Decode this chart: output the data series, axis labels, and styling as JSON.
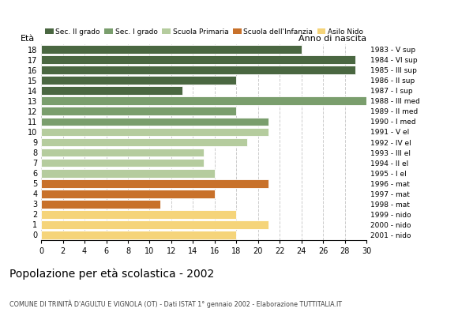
{
  "ages": [
    18,
    17,
    16,
    15,
    14,
    13,
    12,
    11,
    10,
    9,
    8,
    7,
    6,
    5,
    4,
    3,
    2,
    1,
    0
  ],
  "values": [
    24,
    29,
    29,
    18,
    13,
    30,
    18,
    21,
    21,
    19,
    15,
    15,
    16,
    21,
    16,
    11,
    18,
    21,
    18
  ],
  "birth_years": [
    "1983 - V sup",
    "1984 - VI sup",
    "1985 - III sup",
    "1986 - II sup",
    "1987 - I sup",
    "1988 - III med",
    "1989 - II med",
    "1990 - I med",
    "1991 - V el",
    "1992 - IV el",
    "1993 - III el",
    "1994 - II el",
    "1995 - I el",
    "1996 - mat",
    "1997 - mat",
    "1998 - mat",
    "1999 - nido",
    "2000 - nido",
    "2001 - nido"
  ],
  "colors": [
    "#4a6741",
    "#4a6741",
    "#4a6741",
    "#4a6741",
    "#4a6741",
    "#7a9e6d",
    "#7a9e6d",
    "#7a9e6d",
    "#b5cc9e",
    "#b5cc9e",
    "#b5cc9e",
    "#b5cc9e",
    "#b5cc9e",
    "#c8712a",
    "#c8712a",
    "#c8712a",
    "#f5d47a",
    "#f5d47a",
    "#f5d47a"
  ],
  "legend_labels": [
    "Sec. II grado",
    "Sec. I grado",
    "Scuola Primaria",
    "Scuola dell'Infanzia",
    "Asilo Nido"
  ],
  "legend_colors": [
    "#4a6741",
    "#7a9e6d",
    "#b5cc9e",
    "#c8712a",
    "#f5d47a"
  ],
  "title": "Popolazione per età scolastica - 2002",
  "subtitle": "COMUNE DI TRINITÀ D'AGULTU E VIGNOLA (OT) - Dati ISTAT 1° gennaio 2002 - Elaborazione TUTTITALIA.IT",
  "label_age": "Età",
  "label_birth": "Anno di nascita",
  "xlim": [
    0,
    30
  ],
  "xticks": [
    0,
    2,
    4,
    6,
    8,
    10,
    12,
    14,
    16,
    18,
    20,
    22,
    24,
    26,
    28,
    30
  ],
  "bg_color": "#ffffff",
  "bar_edge_color": "white",
  "grid_color": "#cccccc"
}
